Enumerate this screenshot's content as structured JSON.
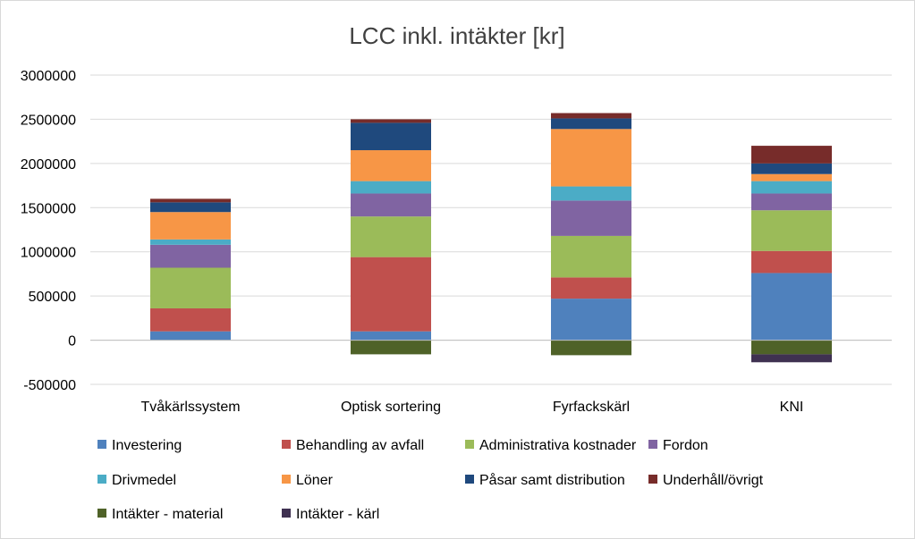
{
  "chart_data": {
    "type": "bar",
    "stacked": true,
    "title": "LCC inkl. intäkter [kr]",
    "xlabel": "",
    "ylabel": "",
    "ylim": [
      -500000,
      3000000
    ],
    "yticks": [
      3000000,
      2500000,
      2000000,
      1500000,
      1000000,
      500000,
      0,
      -500000
    ],
    "ytick_labels": [
      "3000000",
      "2500000",
      "2000000",
      "1500000",
      "1000000",
      "500000",
      "0",
      "-500000"
    ],
    "grid": true,
    "legend_position": "bottom",
    "categories": [
      "Tvåkärlssystem",
      "Optisk sortering",
      "Fyrfackskärl",
      "KNI"
    ],
    "series": [
      {
        "name": "Investering",
        "color": "#4F81BD",
        "values": [
          100000,
          100000,
          470000,
          760000
        ]
      },
      {
        "name": "Behandling av avfall",
        "color": "#C0504D",
        "values": [
          260000,
          840000,
          240000,
          250000
        ]
      },
      {
        "name": "Administrativa kostnader",
        "color": "#9BBB59",
        "values": [
          460000,
          460000,
          470000,
          460000
        ]
      },
      {
        "name": "Fordon",
        "color": "#8064A2",
        "values": [
          260000,
          260000,
          400000,
          190000
        ]
      },
      {
        "name": "Drivmedel",
        "color": "#4BACC6",
        "values": [
          60000,
          140000,
          160000,
          140000
        ]
      },
      {
        "name": "Löner",
        "color": "#F79646",
        "values": [
          310000,
          350000,
          650000,
          80000
        ]
      },
      {
        "name": "Påsar samt distribution",
        "color": "#1F497D",
        "values": [
          110000,
          310000,
          120000,
          120000
        ]
      },
      {
        "name": "Underhåll/övrigt",
        "color": "#772C2A",
        "values": [
          40000,
          40000,
          60000,
          200000
        ]
      },
      {
        "name": "Intäkter - material",
        "color": "#4F6228",
        "values": [
          0,
          -160000,
          -170000,
          -160000
        ]
      },
      {
        "name": "Intäkter - kärl",
        "color": "#3F3151",
        "values": [
          0,
          0,
          0,
          -90000
        ]
      }
    ]
  }
}
